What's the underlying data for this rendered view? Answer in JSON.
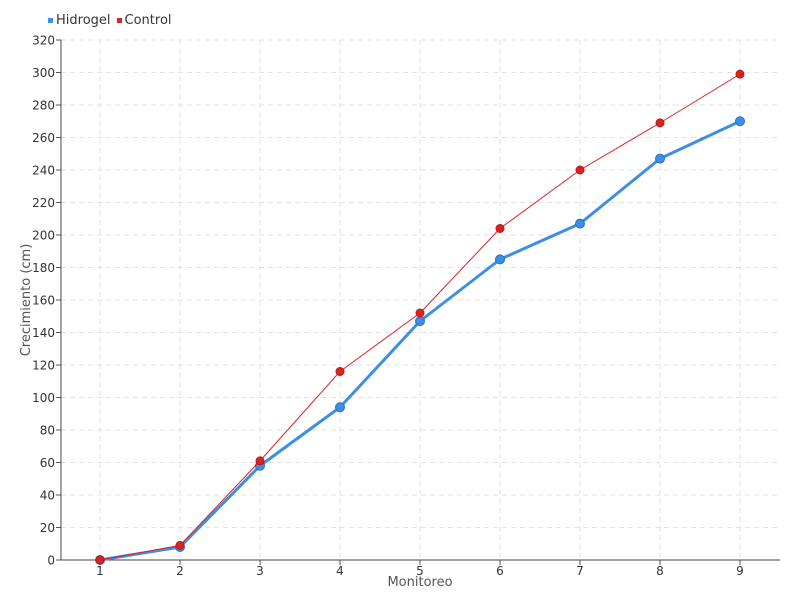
{
  "chart_data": {
    "type": "line",
    "xlabel": "Monitoreo",
    "ylabel": "Crecimiento (cm)",
    "categories": [
      "1",
      "2",
      "3",
      "4",
      "5",
      "6",
      "7",
      "8",
      "9"
    ],
    "ylim": [
      0,
      320
    ],
    "yticks": [
      0,
      20,
      40,
      60,
      80,
      100,
      120,
      140,
      160,
      180,
      200,
      220,
      240,
      260,
      280,
      300,
      320
    ],
    "grid": true,
    "legend_position": "top-left",
    "series": [
      {
        "name": "Hidrogel",
        "color": "#3d8ee8",
        "values": [
          0,
          8,
          58,
          94,
          147,
          185,
          207,
          247,
          270
        ]
      },
      {
        "name": "Control",
        "color": "#dd2222",
        "values": [
          0,
          9,
          61,
          116,
          152,
          204,
          240,
          269,
          299
        ]
      }
    ]
  }
}
